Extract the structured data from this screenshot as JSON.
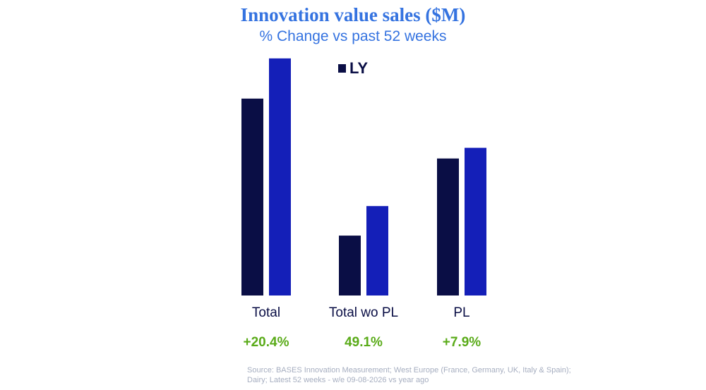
{
  "chart_data": {
    "type": "bar",
    "title": "Innovation value sales ($M)",
    "subtitle": "% Change vs past 52 weeks",
    "categories": [
      "Total",
      "Total wo PL",
      "PL"
    ],
    "series": [
      {
        "name": "LY",
        "values": [
          240,
          73,
          167
        ],
        "color": "#0a0e45"
      },
      {
        "values": [
          289,
          109,
          180
        ],
        "color": "#141fb8"
      }
    ],
    "changes": [
      "+20.4%",
      "49.1%",
      "+7.9%"
    ],
    "change_color": "#5aab19",
    "ylim": [
      0,
      300
    ],
    "legend_position": "top-center",
    "grid": false
  },
  "source": {
    "line1": "Source: BASES Innovation Measurement; West Europe (France, Germany, UK, Italy & Spain);",
    "line2": "Dairy; Latest 52 weeks - w/e 09-08-2026 vs year ago"
  }
}
